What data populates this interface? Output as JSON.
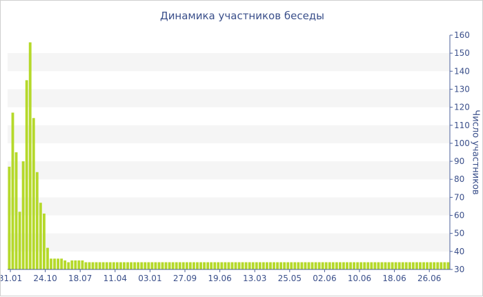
{
  "chart_data": {
    "type": "bar",
    "title": "Динамика участников беседы",
    "xlabel": "",
    "ylabel": "Число участников",
    "ylim": [
      30,
      160
    ],
    "yticks": [
      30,
      40,
      50,
      60,
      70,
      80,
      90,
      100,
      110,
      120,
      130,
      140,
      150,
      160
    ],
    "xtick_labels": [
      "31.01",
      "24.10",
      "18.07",
      "11.04",
      "03.01",
      "27.09",
      "19.06",
      "13.03",
      "25.05",
      "02.06",
      "10.06",
      "18.06",
      "26.06"
    ],
    "grid": "alternating horizontal bands",
    "bar_color": "#b5d92a",
    "values": [
      87,
      117,
      95,
      62,
      90,
      135,
      156,
      114,
      84,
      67,
      61,
      42,
      36,
      36,
      36,
      36,
      35,
      34,
      35,
      35,
      35,
      35,
      34,
      34,
      34,
      34,
      34,
      34,
      34,
      34,
      34,
      34,
      34,
      34,
      34,
      34,
      34,
      34,
      34,
      34,
      34,
      34,
      34,
      34,
      34,
      34,
      34,
      34,
      34,
      34,
      34,
      34,
      34,
      34,
      34,
      34,
      34,
      34,
      34,
      34,
      34,
      34,
      34,
      34,
      34,
      34,
      34,
      34,
      34,
      34,
      34,
      34,
      34,
      34,
      34,
      34,
      34,
      34,
      34,
      34,
      34,
      34,
      34,
      34,
      34,
      34,
      34,
      34,
      34,
      34,
      34,
      34,
      34,
      34,
      34,
      34,
      34,
      34,
      34,
      34,
      34,
      34,
      34,
      34,
      34,
      34,
      34,
      34,
      34,
      34,
      34,
      34,
      34,
      34,
      34,
      34,
      34,
      34,
      34,
      34,
      34,
      34,
      34,
      34,
      34,
      34,
      34
    ]
  }
}
